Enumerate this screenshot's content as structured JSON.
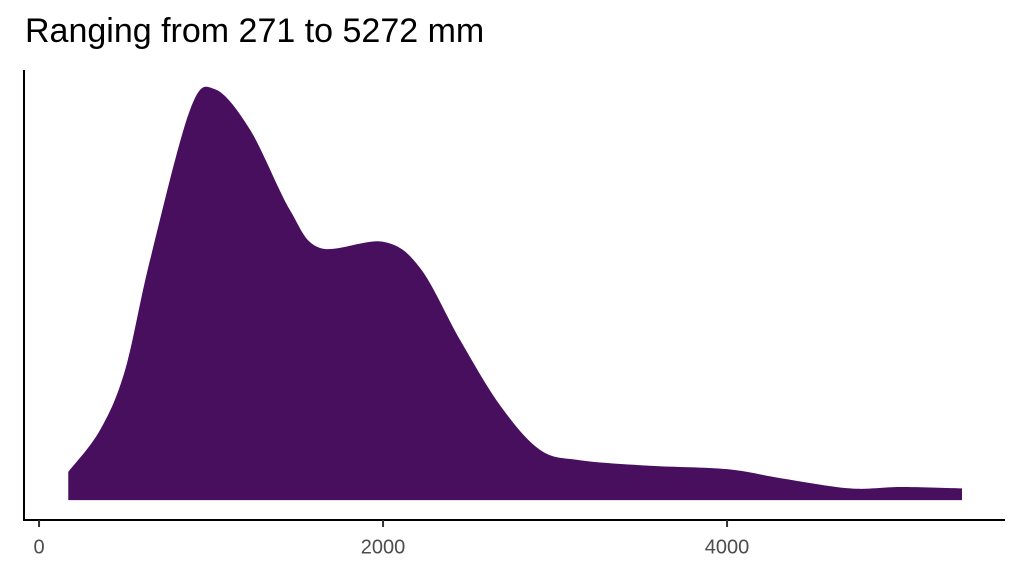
{
  "chart_data": {
    "type": "area",
    "title": "Ranging from 271 to 5272 mm",
    "x": [
      170,
      355,
      500,
      645,
      878,
      1023,
      1227,
      1459,
      1634,
      2000,
      2215,
      2448,
      2680,
      2913,
      3145,
      3552,
      4000,
      4308,
      4715,
      5006,
      5366
    ],
    "values": [
      4.1e-05,
      0.000102,
      0.000189,
      0.000349,
      0.000568,
      0.000598,
      0.000539,
      0.000422,
      0.000367,
      0.000376,
      0.000338,
      0.000233,
      0.000138,
      7.3e-05,
      5.8e-05,
      5e-05,
      4.5e-05,
      3.2e-05,
      1.7e-05,
      1.9e-05,
      1.7e-05
    ],
    "color": "#480f5f",
    "xlim": [
      -99,
      5616
    ],
    "xticks": [
      0,
      2000,
      4000
    ],
    "ylim": [
      -2.9e-05,
      0.000626
    ]
  }
}
